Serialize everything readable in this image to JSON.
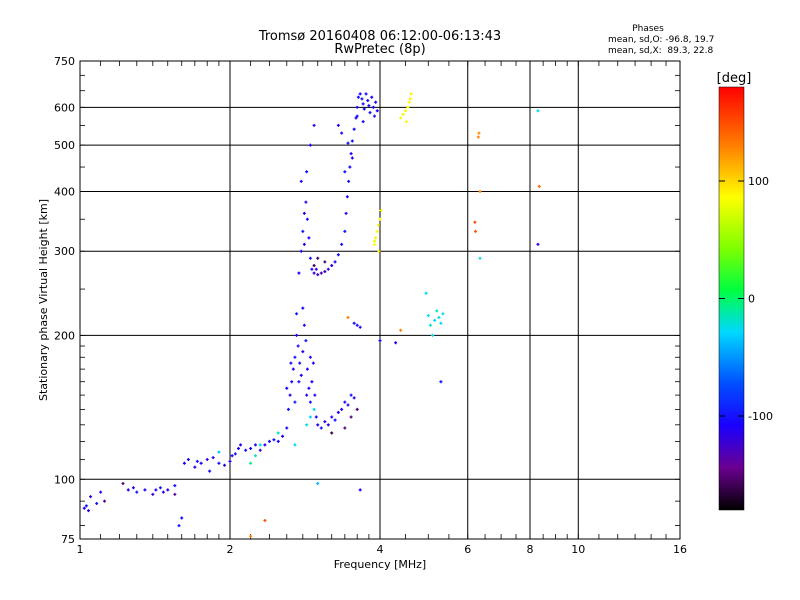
{
  "chart_data": {
    "type": "scatter",
    "title": "Tromsø 20160408 06:12:00-06:13:43",
    "subtitle": "RwPretec (8p)",
    "xlabel": "Frequency [MHz]",
    "ylabel": "Stationary phase Virtual Height [km]",
    "x_scale": "log",
    "y_scale": "log",
    "xlim": [
      1,
      16
    ],
    "ylim": [
      75,
      750
    ],
    "x_ticks": [
      1,
      2,
      4,
      6,
      8,
      10,
      16
    ],
    "y_ticks": [
      75,
      100,
      200,
      300,
      400,
      500,
      600,
      750
    ],
    "grid": true,
    "phases_box": {
      "title": "Phases",
      "line1": "mean, sd,O: -96.8, 19.7",
      "line2": "mean, sd,X:  89.3, 22.8"
    },
    "colorbar": {
      "label": "[deg]",
      "range": [
        -180,
        180
      ],
      "ticks": [
        100,
        0,
        -100
      ],
      "tick_labels": [
        "100",
        "0",
        "-100"
      ]
    },
    "series": [
      {
        "mode": "O",
        "points": [
          [
            1.02,
            87,
            -110
          ],
          [
            1.03,
            88,
            -100
          ],
          [
            1.04,
            86,
            -115
          ],
          [
            1.08,
            89,
            -95
          ],
          [
            1.1,
            94,
            -105
          ],
          [
            1.25,
            95,
            -110
          ],
          [
            1.28,
            96,
            -115
          ],
          [
            1.3,
            94,
            -100
          ],
          [
            1.35,
            95,
            -110
          ],
          [
            1.4,
            93,
            -120
          ],
          [
            1.42,
            95,
            -105
          ],
          [
            1.45,
            96,
            -100
          ],
          [
            1.47,
            94,
            -110
          ],
          [
            1.5,
            95,
            -115
          ],
          [
            1.55,
            97,
            -105
          ],
          [
            1.6,
            83,
            -100
          ],
          [
            1.62,
            108,
            -110
          ],
          [
            1.65,
            110,
            -105
          ],
          [
            1.7,
            106,
            -115
          ],
          [
            1.72,
            109,
            -100
          ],
          [
            1.75,
            108,
            -110
          ],
          [
            1.8,
            110,
            -120
          ],
          [
            1.82,
            104,
            -105
          ],
          [
            1.85,
            111,
            -110
          ],
          [
            1.9,
            108,
            -100
          ],
          [
            1.95,
            107,
            -115
          ],
          [
            2.0,
            109,
            -110
          ],
          [
            2.02,
            112,
            -105
          ],
          [
            2.05,
            113,
            -100
          ],
          [
            2.08,
            116,
            -110
          ],
          [
            2.1,
            118,
            -115
          ],
          [
            2.15,
            115,
            -105
          ],
          [
            2.2,
            116,
            -110
          ],
          [
            2.25,
            118,
            -100
          ],
          [
            2.3,
            115,
            -120
          ],
          [
            2.35,
            118,
            -110
          ],
          [
            2.4,
            120,
            -105
          ],
          [
            2.45,
            121,
            -100
          ],
          [
            2.5,
            120,
            -110
          ],
          [
            2.55,
            123,
            -115
          ],
          [
            2.6,
            128,
            -105
          ],
          [
            2.62,
            140,
            -100
          ],
          [
            2.64,
            150,
            -110
          ],
          [
            2.66,
            160,
            -105
          ],
          [
            2.68,
            170,
            -115
          ],
          [
            2.7,
            180,
            -100
          ],
          [
            2.72,
            200,
            -110
          ],
          [
            2.74,
            190,
            -105
          ],
          [
            2.76,
            175,
            -100
          ],
          [
            2.78,
            165,
            -110
          ],
          [
            2.8,
            185,
            -115
          ],
          [
            2.82,
            210,
            -105
          ],
          [
            2.84,
            195,
            -100
          ],
          [
            2.86,
            170,
            -110
          ],
          [
            2.88,
            155,
            -105
          ],
          [
            2.9,
            145,
            -100
          ],
          [
            2.92,
            160,
            -110
          ],
          [
            2.94,
            175,
            -115
          ],
          [
            2.96,
            150,
            -105
          ],
          [
            2.98,
            135,
            -110
          ],
          [
            2.7,
            145,
            -100
          ],
          [
            2.6,
            155,
            -105
          ],
          [
            2.65,
            175,
            -110
          ],
          [
            2.75,
            160,
            -100
          ],
          [
            2.85,
            150,
            -115
          ],
          [
            2.72,
            222,
            -100
          ],
          [
            2.8,
            228,
            -105
          ],
          [
            2.9,
            180,
            -110
          ],
          [
            3.0,
            130,
            -110
          ],
          [
            3.05,
            128,
            -100
          ],
          [
            3.1,
            132,
            -115
          ],
          [
            3.15,
            130,
            -110
          ],
          [
            3.2,
            135,
            -105
          ],
          [
            3.25,
            133,
            -100
          ],
          [
            3.3,
            138,
            -110
          ],
          [
            3.35,
            140,
            -115
          ],
          [
            3.4,
            145,
            -105
          ],
          [
            3.45,
            143,
            -110
          ],
          [
            3.5,
            150,
            -100
          ],
          [
            3.55,
            148,
            -110
          ],
          [
            2.75,
            270,
            -110
          ],
          [
            2.78,
            300,
            -105
          ],
          [
            2.8,
            330,
            -100
          ],
          [
            2.82,
            360,
            -110
          ],
          [
            2.84,
            380,
            -115
          ],
          [
            2.86,
            350,
            -105
          ],
          [
            2.88,
            320,
            -110
          ],
          [
            2.9,
            290,
            -100
          ],
          [
            2.92,
            275,
            -110
          ],
          [
            2.95,
            270,
            -115
          ],
          [
            2.98,
            275,
            -120
          ],
          [
            3.0,
            268,
            -125
          ],
          [
            3.05,
            270,
            -130
          ],
          [
            3.1,
            272,
            -125
          ],
          [
            3.15,
            275,
            -120
          ],
          [
            3.2,
            280,
            -115
          ],
          [
            3.25,
            285,
            -110
          ],
          [
            3.3,
            295,
            -105
          ],
          [
            3.35,
            310,
            -100
          ],
          [
            3.4,
            330,
            -100
          ],
          [
            3.42,
            360,
            -105
          ],
          [
            3.44,
            390,
            -110
          ],
          [
            3.46,
            420,
            -100
          ],
          [
            3.48,
            450,
            -105
          ],
          [
            3.5,
            480,
            -110
          ],
          [
            3.52,
            510,
            -100
          ],
          [
            3.55,
            540,
            -105
          ],
          [
            3.58,
            570,
            -110
          ],
          [
            3.6,
            600,
            -100
          ],
          [
            3.62,
            630,
            -105
          ],
          [
            3.65,
            640,
            -110
          ],
          [
            3.68,
            625,
            -100
          ],
          [
            3.7,
            610,
            -105
          ],
          [
            3.72,
            595,
            -110
          ],
          [
            3.75,
            640,
            -100
          ],
          [
            3.78,
            620,
            -105
          ],
          [
            3.8,
            605,
            -110
          ],
          [
            3.82,
            585,
            -100
          ],
          [
            3.85,
            630,
            -105
          ],
          [
            3.88,
            600,
            -110
          ],
          [
            3.9,
            575,
            -100
          ],
          [
            3.92,
            615,
            -105
          ],
          [
            3.95,
            590,
            -110
          ],
          [
            3.6,
            575,
            -100
          ],
          [
            3.7,
            560,
            -105
          ],
          [
            3.3,
            550,
            -110
          ],
          [
            3.35,
            530,
            -100
          ],
          [
            3.45,
            505,
            -105
          ],
          [
            3.52,
            470,
            -110
          ],
          [
            3.4,
            440,
            -100
          ],
          [
            2.95,
            550,
            -105
          ],
          [
            2.9,
            500,
            -110
          ],
          [
            2.85,
            440,
            -100
          ],
          [
            2.78,
            420,
            -105
          ],
          [
            2.82,
            310,
            -110
          ],
          [
            3.6,
            210,
            -105
          ],
          [
            3.65,
            208,
            -110
          ],
          [
            3.55,
            212,
            -100
          ],
          [
            4.0,
            195,
            -105
          ],
          [
            4.3,
            193,
            -110
          ],
          [
            5.3,
            160,
            -100
          ],
          [
            8.3,
            310,
            -110
          ],
          [
            3.65,
            95,
            -105
          ],
          [
            1.58,
            80,
            -100
          ]
        ]
      },
      {
        "mode": "X",
        "points": [
          [
            3.9,
            310,
            85
          ],
          [
            3.92,
            320,
            90
          ],
          [
            3.95,
            330,
            88
          ],
          [
            3.97,
            340,
            92
          ],
          [
            4.0,
            350,
            86
          ],
          [
            4.02,
            365,
            90
          ],
          [
            3.98,
            300,
            88
          ],
          [
            4.4,
            570,
            88
          ],
          [
            4.45,
            580,
            92
          ],
          [
            4.5,
            590,
            90
          ],
          [
            4.55,
            600,
            86
          ],
          [
            4.58,
            615,
            88
          ],
          [
            4.6,
            625,
            92
          ],
          [
            4.62,
            640,
            90
          ],
          [
            4.52,
            560,
            88
          ],
          [
            3.9,
            315,
            80
          ],
          [
            6.3,
            520,
            130
          ],
          [
            6.32,
            530,
            125
          ],
          [
            6.35,
            400,
            130
          ],
          [
            6.2,
            345,
            150
          ],
          [
            6.22,
            330,
            145
          ],
          [
            8.35,
            410,
            140
          ],
          [
            3.45,
            218,
            130
          ],
          [
            4.4,
            205,
            130
          ]
        ]
      },
      {
        "mode": "mixed",
        "points": [
          [
            5.0,
            220,
            -30
          ],
          [
            5.05,
            210,
            -20
          ],
          [
            5.1,
            200,
            -25
          ],
          [
            5.15,
            215,
            -30
          ],
          [
            5.2,
            225,
            -20
          ],
          [
            5.25,
            218,
            -25
          ],
          [
            5.3,
            212,
            -30
          ],
          [
            5.35,
            222,
            -20
          ],
          [
            4.95,
            245,
            -30
          ],
          [
            6.35,
            290,
            -20
          ],
          [
            8.3,
            590,
            -25
          ],
          [
            2.9,
            135,
            -30
          ],
          [
            2.95,
            140,
            -25
          ],
          [
            2.85,
            130,
            -20
          ],
          [
            2.7,
            118,
            -30
          ],
          [
            2.3,
            118,
            -25
          ],
          [
            2.25,
            112,
            -20
          ],
          [
            3.0,
            98,
            -40
          ],
          [
            2.2,
            108,
            -10
          ],
          [
            2.5,
            125,
            -15
          ],
          [
            1.9,
            114,
            -35
          ],
          [
            1.05,
            92,
            -120
          ],
          [
            1.12,
            90,
            -150
          ],
          [
            1.55,
            93,
            -140
          ],
          [
            2.35,
            82,
            150
          ],
          [
            2.2,
            76,
            130
          ],
          [
            1.22,
            98,
            -150
          ],
          [
            3.5,
            135,
            -150
          ],
          [
            3.6,
            140,
            -155
          ],
          [
            3.4,
            128,
            -150
          ],
          [
            3.2,
            125,
            -160
          ],
          [
            3.0,
            290,
            -160
          ],
          [
            3.1,
            285,
            -155
          ],
          [
            2.95,
            280,
            -160
          ]
        ]
      }
    ]
  }
}
